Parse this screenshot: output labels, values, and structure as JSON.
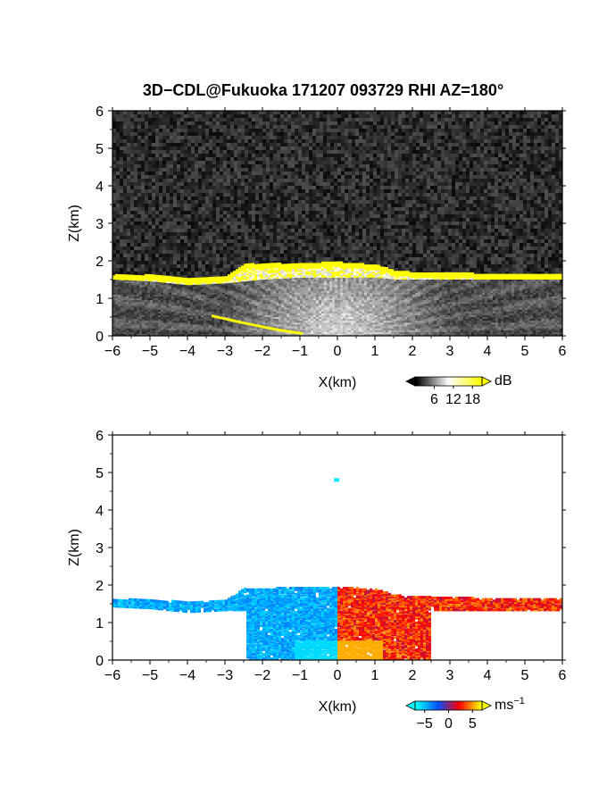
{
  "title": "3D−CDL@Fukuoka 171207 093729 RHI AZ=180°",
  "chart_data": [
    {
      "type": "heatmap",
      "panel": "reflectivity",
      "xlabel": "X(km)",
      "ylabel": "Z(km)",
      "xlim": [
        -6,
        6
      ],
      "ylim": [
        0,
        6
      ],
      "xticks": [
        "−6",
        "−5",
        "−4",
        "−3",
        "−2",
        "−1",
        "0",
        "1",
        "2",
        "3",
        "4",
        "5",
        "6"
      ],
      "yticks": [
        "0",
        "1",
        "2",
        "3",
        "4",
        "5",
        "6"
      ],
      "colorbar": {
        "unit": "dB",
        "ticks": [
          "6",
          "12",
          "18"
        ],
        "range": [
          0,
          21
        ],
        "colors": [
          "#000000",
          "#ffffff",
          "#ffff00"
        ]
      },
      "features": {
        "cloud_top_x": [
          -6.0,
          -5.0,
          -4.0,
          -3.0,
          -2.5,
          -2.0,
          -1.0,
          0.0,
          1.0,
          1.5,
          2.0,
          3.0,
          4.0,
          5.0,
          6.0
        ],
        "cloud_top_z": [
          1.58,
          1.58,
          1.5,
          1.55,
          1.88,
          1.87,
          1.9,
          1.92,
          1.85,
          1.7,
          1.65,
          1.65,
          1.6,
          1.6,
          1.6
        ],
        "cloud_bottom_z": [
          1.5,
          1.45,
          1.35,
          1.4,
          1.45,
          1.5,
          1.55,
          1.55,
          1.55,
          1.5,
          1.5,
          1.5,
          1.5,
          1.5,
          1.5
        ],
        "low_band_x": [
          -3.4,
          -2.5,
          -1.6,
          -1.0
        ],
        "low_band_z": [
          0.5,
          0.3,
          0.12,
          0.03
        ]
      }
    },
    {
      "type": "heatmap",
      "panel": "doppler_velocity",
      "xlabel": "X(km)",
      "ylabel": "Z(km)",
      "xlim": [
        -6,
        6
      ],
      "ylim": [
        0,
        6
      ],
      "xticks": [
        "−6",
        "−5",
        "−4",
        "−3",
        "−2",
        "−1",
        "0",
        "1",
        "2",
        "3",
        "4",
        "5",
        "6"
      ],
      "yticks": [
        "0",
        "1",
        "2",
        "3",
        "4",
        "5",
        "6"
      ],
      "colorbar": {
        "unit": "ms",
        "exponent": "−1",
        "ticks": [
          "−5",
          "0",
          "5"
        ],
        "range": [
          -7,
          7
        ],
        "colors": [
          "#00ffff",
          "#0050ff",
          "#ff0000",
          "#ffff00"
        ]
      },
      "features": {
        "isolated_point": [
          -0.02,
          4.8,
          -6.5
        ],
        "negative_side_velocity": -5,
        "positive_side_velocity": 4
      }
    }
  ]
}
